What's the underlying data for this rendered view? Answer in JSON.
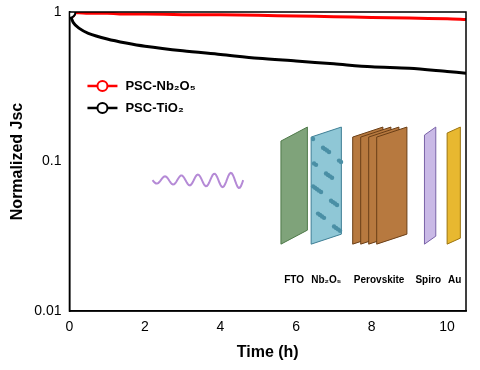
{
  "chart_data": {
    "type": "line",
    "x_label": "Time (h)",
    "y_label": "Normalized Jsc",
    "x": [
      0,
      0.1,
      0.25,
      0.5,
      1,
      1.5,
      2,
      3,
      4,
      5,
      6,
      7,
      8,
      9,
      10,
      10.5
    ],
    "series": [
      {
        "name": "PSC-Nb₂O₅",
        "color": "#ff0000",
        "marker": "circle",
        "values": [
          1,
          0.99,
          0.99,
          0.98,
          0.98,
          0.97,
          0.97,
          0.96,
          0.96,
          0.95,
          0.94,
          0.93,
          0.92,
          0.91,
          0.9,
          0.89
        ]
      },
      {
        "name": "PSC-TiO₂",
        "color": "#000000",
        "marker": "circle",
        "values": [
          1,
          0.85,
          0.78,
          0.72,
          0.66,
          0.62,
          0.59,
          0.55,
          0.52,
          0.49,
          0.47,
          0.45,
          0.43,
          0.42,
          0.4,
          0.39
        ]
      }
    ],
    "xlim": [
      0,
      10.5
    ],
    "xticks": [
      0,
      2,
      4,
      6,
      8,
      10
    ],
    "ylim": [
      0.01,
      1
    ],
    "yticks": [
      0.01,
      0.1,
      1
    ],
    "log": "y",
    "grid": false,
    "legend": "upper left",
    "annotations": [
      "FTO",
      "Nb₂O₅",
      "Perovskite",
      "Spiro",
      "Au"
    ]
  }
}
